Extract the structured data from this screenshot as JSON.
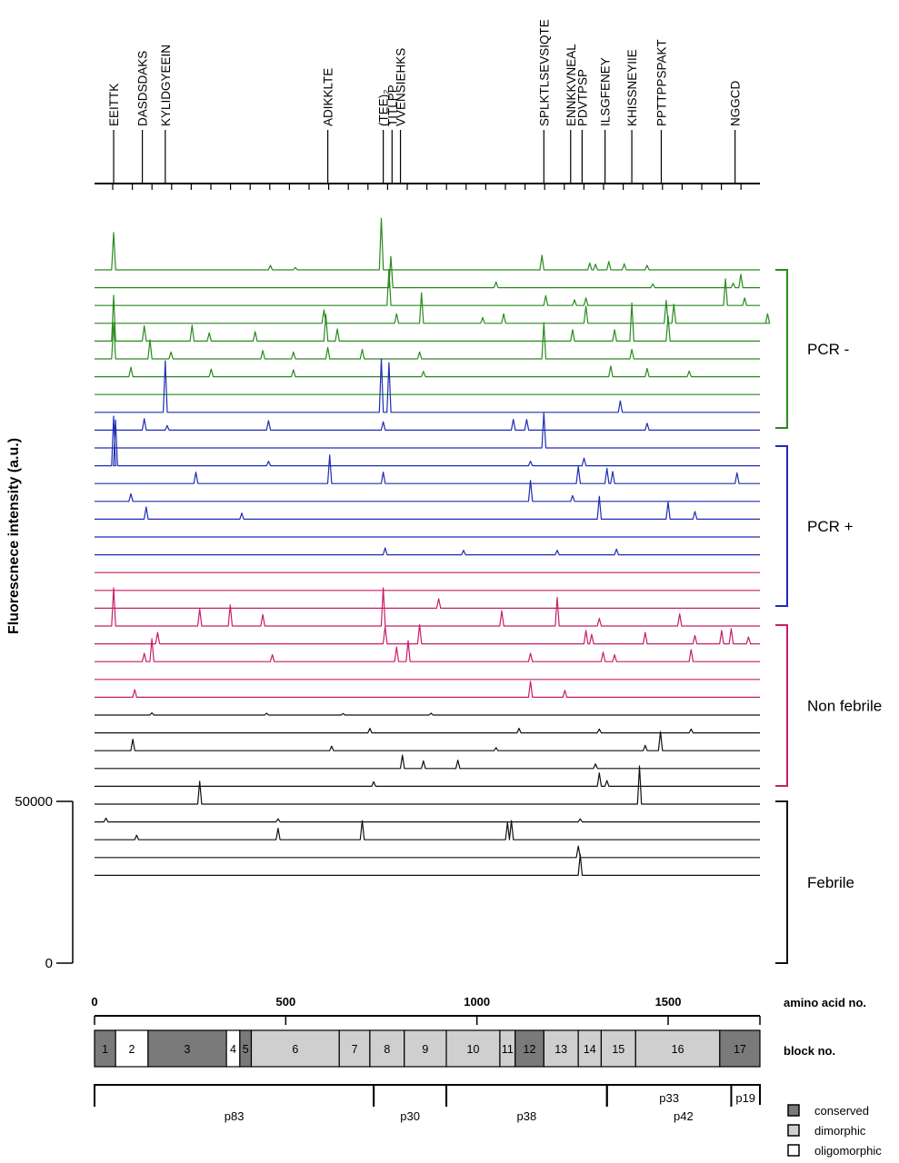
{
  "chart_data": {
    "type": "line",
    "ylabel": "Fluorescnece intensity (a.u.)",
    "ylim": [
      0,
      50000
    ],
    "yticks": [
      "50000",
      "0"
    ],
    "aa_axis": {
      "label": "amino acid no.",
      "range": [
        0,
        1740
      ],
      "ticks": [
        {
          "value": 0,
          "label": "0"
        },
        {
          "value": 500,
          "label": "500"
        },
        {
          "value": 1000,
          "label": "1000"
        },
        {
          "value": 1500,
          "label": "1500"
        }
      ]
    },
    "peptides": [
      {
        "label": "EEITTK",
        "aa": 50
      },
      {
        "label": "DASDSDAKS",
        "aa": 125
      },
      {
        "label": "KYLIDGYEEIN",
        "aa": 185
      },
      {
        "label": "ADIKKLTE",
        "aa": 610
      },
      {
        "label": "(TEE)₂",
        "aa": 755
      },
      {
        "label": "TITLPP",
        "aa": 778
      },
      {
        "label": "VVENSIEHKS",
        "aa": 800
      },
      {
        "label": "SPLKTLSEVSIQTE",
        "aa": 1175
      },
      {
        "label": "ENNKKVNEAL",
        "aa": 1245
      },
      {
        "label": "PDVTPSP",
        "aa": 1275
      },
      {
        "label": "ILSGFENEY",
        "aa": 1335
      },
      {
        "label": "KHISSNEYIIE",
        "aa": 1405
      },
      {
        "label": "PPTTPPSPAKT",
        "aa": 1482
      },
      {
        "label": "NGGCD",
        "aa": 1675
      }
    ],
    "groups": [
      {
        "name": "PCR -",
        "color": "#2a8a1e",
        "traces": [
          [
            [
              50,
              0.98
            ],
            [
              460,
              0.12
            ],
            [
              525,
              0.06
            ],
            [
              750,
              1.35
            ],
            [
              1170,
              0.38
            ],
            [
              1295,
              0.18
            ],
            [
              1310,
              0.15
            ],
            [
              1345,
              0.22
            ],
            [
              1385,
              0.16
            ],
            [
              1445,
              0.12
            ]
          ],
          [
            [
              775,
              0.82
            ],
            [
              1050,
              0.15
            ],
            [
              1460,
              0.1
            ],
            [
              1670,
              0.12
            ],
            [
              1690,
              0.35
            ]
          ],
          [
            [
              770,
              0.95
            ],
            [
              1180,
              0.26
            ],
            [
              1255,
              0.15
            ],
            [
              1285,
              0.2
            ],
            [
              1650,
              0.7
            ],
            [
              1700,
              0.2
            ]
          ],
          [
            [
              600,
              0.35
            ],
            [
              790,
              0.25
            ],
            [
              855,
              0.8
            ],
            [
              1015,
              0.15
            ],
            [
              1070,
              0.25
            ],
            [
              1285,
              0.45
            ],
            [
              1495,
              0.6
            ],
            [
              1515,
              0.5
            ],
            [
              1760,
              0.25
            ]
          ],
          [
            [
              50,
              1.2
            ],
            [
              130,
              0.4
            ],
            [
              255,
              0.42
            ],
            [
              300,
              0.22
            ],
            [
              420,
              0.25
            ],
            [
              605,
              0.7
            ],
            [
              635,
              0.32
            ],
            [
              1250,
              0.3
            ],
            [
              1360,
              0.3
            ],
            [
              1405,
              1.0
            ],
            [
              1500,
              0.65
            ]
          ],
          [
            [
              50,
              0.95
            ],
            [
              145,
              0.5
            ],
            [
              200,
              0.18
            ],
            [
              440,
              0.22
            ],
            [
              520,
              0.18
            ],
            [
              610,
              0.3
            ],
            [
              700,
              0.25
            ],
            [
              850,
              0.18
            ],
            [
              1175,
              0.95
            ],
            [
              1405,
              0.25
            ]
          ],
          [
            [
              95,
              0.25
            ],
            [
              305,
              0.2
            ],
            [
              520,
              0.18
            ],
            [
              860,
              0.14
            ],
            [
              1350,
              0.28
            ],
            [
              1445,
              0.22
            ],
            [
              1555,
              0.15
            ]
          ],
          []
        ]
      },
      {
        "name": "PCR +",
        "color": "#1f2db3",
        "traces": [
          [
            [
              185,
              1.35
            ],
            [
              750,
              1.4
            ],
            [
              770,
              1.3
            ],
            [
              1375,
              0.3
            ]
          ],
          [
            [
              130,
              0.3
            ],
            [
              190,
              0.12
            ],
            [
              455,
              0.25
            ],
            [
              755,
              0.22
            ],
            [
              1095,
              0.28
            ],
            [
              1130,
              0.28
            ],
            [
              1445,
              0.18
            ]
          ],
          [
            [
              1175,
              0.92
            ]
          ],
          [
            [
              50,
              1.3
            ],
            [
              55,
              1.2
            ],
            [
              455,
              0.12
            ],
            [
              1140,
              0.12
            ],
            [
              1280,
              0.2
            ]
          ],
          [
            [
              265,
              0.3
            ],
            [
              615,
              0.75
            ],
            [
              755,
              0.3
            ],
            [
              1265,
              0.45
            ],
            [
              1340,
              0.4
            ],
            [
              1355,
              0.32
            ],
            [
              1680,
              0.28
            ]
          ],
          [
            [
              95,
              0.2
            ],
            [
              1140,
              0.55
            ],
            [
              1250,
              0.15
            ]
          ],
          [
            [
              135,
              0.32
            ],
            [
              385,
              0.16
            ],
            [
              1320,
              0.6
            ],
            [
              1500,
              0.45
            ],
            [
              1570,
              0.2
            ]
          ],
          [],
          [
            [
              760,
              0.18
            ],
            [
              965,
              0.12
            ],
            [
              1210,
              0.12
            ],
            [
              1365,
              0.15
            ]
          ]
        ]
      },
      {
        "name": "Non febrile",
        "color": "#c81d68",
        "traces": [
          [],
          [],
          [
            [
              900,
              0.25
            ]
          ],
          [
            [
              50,
              1.0
            ],
            [
              275,
              0.45
            ],
            [
              355,
              0.55
            ],
            [
              440,
              0.3
            ],
            [
              755,
              1.0
            ],
            [
              1065,
              0.4
            ],
            [
              1210,
              0.75
            ],
            [
              1320,
              0.2
            ],
            [
              1530,
              0.32
            ]
          ],
          [
            [
              165,
              0.3
            ],
            [
              760,
              0.45
            ],
            [
              850,
              0.5
            ],
            [
              1285,
              0.35
            ],
            [
              1300,
              0.25
            ],
            [
              1440,
              0.3
            ],
            [
              1570,
              0.22
            ],
            [
              1640,
              0.35
            ],
            [
              1665,
              0.4
            ],
            [
              1710,
              0.18
            ]
          ],
          [
            [
              130,
              0.22
            ],
            [
              150,
              0.6
            ],
            [
              465,
              0.18
            ],
            [
              790,
              0.38
            ],
            [
              820,
              0.55
            ],
            [
              1140,
              0.22
            ],
            [
              1330,
              0.25
            ],
            [
              1360,
              0.18
            ],
            [
              1560,
              0.32
            ]
          ],
          [],
          [
            [
              105,
              0.2
            ],
            [
              1140,
              0.42
            ],
            [
              1230,
              0.18
            ]
          ]
        ]
      },
      {
        "name": "Febrile",
        "color": "#111111",
        "traces": [
          [
            [
              150,
              0.06
            ],
            [
              450,
              0.05
            ],
            [
              650,
              0.04
            ],
            [
              880,
              0.05
            ]
          ],
          [
            [
              720,
              0.12
            ],
            [
              1110,
              0.12
            ],
            [
              1320,
              0.1
            ],
            [
              1560,
              0.1
            ]
          ],
          [
            [
              100,
              0.3
            ],
            [
              620,
              0.12
            ],
            [
              1050,
              0.08
            ],
            [
              1440,
              0.14
            ],
            [
              1480,
              0.5
            ]
          ],
          [
            [
              805,
              0.35
            ],
            [
              860,
              0.2
            ],
            [
              950,
              0.22
            ],
            [
              1310,
              0.12
            ]
          ],
          [
            [
              730,
              0.12
            ],
            [
              1320,
              0.35
            ],
            [
              1340,
              0.15
            ]
          ],
          [
            [
              275,
              0.6
            ],
            [
              1425,
              1.0
            ]
          ],
          [
            [
              30,
              0.1
            ],
            [
              480,
              0.08
            ],
            [
              1270,
              0.08
            ]
          ],
          [
            [
              110,
              0.12
            ],
            [
              480,
              0.3
            ],
            [
              700,
              0.5
            ],
            [
              1080,
              0.45
            ],
            [
              1090,
              0.5
            ]
          ],
          [
            [
              1265,
              0.3
            ]
          ],
          [
            [
              1270,
              0.55
            ]
          ]
        ]
      }
    ],
    "blocks": [
      {
        "no": "1",
        "start": 0,
        "end": 55,
        "type": "conserved"
      },
      {
        "no": "2",
        "start": 55,
        "end": 140,
        "type": "oligomorphic"
      },
      {
        "no": "3",
        "start": 140,
        "end": 345,
        "type": "conserved"
      },
      {
        "no": "4",
        "start": 345,
        "end": 380,
        "type": "oligomorphic"
      },
      {
        "no": "5",
        "start": 380,
        "end": 410,
        "type": "conserved"
      },
      {
        "no": "6",
        "start": 410,
        "end": 640,
        "type": "dimorphic"
      },
      {
        "no": "7",
        "start": 640,
        "end": 720,
        "type": "dimorphic"
      },
      {
        "no": "8",
        "start": 720,
        "end": 810,
        "type": "dimorphic"
      },
      {
        "no": "9",
        "start": 810,
        "end": 920,
        "type": "dimorphic"
      },
      {
        "no": "10",
        "start": 920,
        "end": 1060,
        "type": "dimorphic"
      },
      {
        "no": "11",
        "start": 1060,
        "end": 1100,
        "type": "dimorphic"
      },
      {
        "no": "12",
        "start": 1100,
        "end": 1175,
        "type": "conserved"
      },
      {
        "no": "13",
        "start": 1175,
        "end": 1265,
        "type": "dimorphic"
      },
      {
        "no": "14",
        "start": 1265,
        "end": 1325,
        "type": "dimorphic"
      },
      {
        "no": "15",
        "start": 1325,
        "end": 1415,
        "type": "dimorphic"
      },
      {
        "no": "16",
        "start": 1415,
        "end": 1635,
        "type": "dimorphic"
      },
      {
        "no": "17",
        "start": 1635,
        "end": 1740,
        "type": "conserved"
      }
    ],
    "block_axis_label": "block no.",
    "proteins": [
      {
        "name": "p83",
        "start": 0,
        "end": 730
      },
      {
        "name": "p30",
        "start": 730,
        "end": 920
      },
      {
        "name": "p38",
        "start": 920,
        "end": 1340
      },
      {
        "name": "p42",
        "start": 1340,
        "end": 1740
      },
      {
        "name": "p33",
        "start": 1340,
        "end": 1665
      },
      {
        "name": "p19",
        "start": 1665,
        "end": 1740
      }
    ],
    "legend": [
      {
        "label": "conserved",
        "color": "#7a7a7a"
      },
      {
        "label": "dimorphic",
        "color": "#cfcfcf"
      },
      {
        "label": "oligomorphic",
        "color": "#ffffff"
      }
    ]
  }
}
